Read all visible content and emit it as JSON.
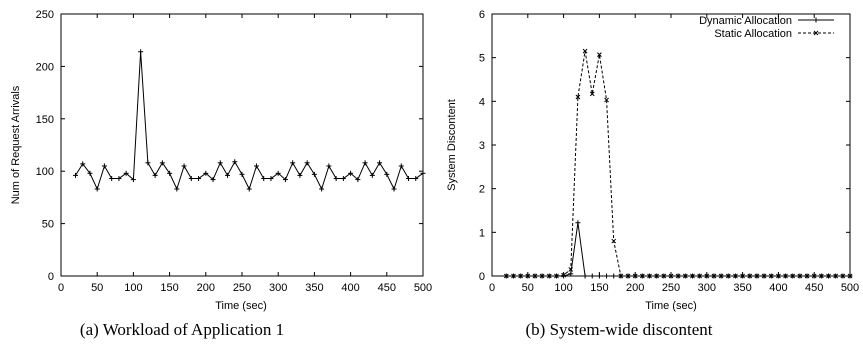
{
  "chart_data": [
    {
      "type": "line",
      "caption": "(a) Workload of Application 1",
      "xlabel": "Time (sec)",
      "ylabel": "Num of Request Arrivals",
      "xlim": [
        0,
        500
      ],
      "ylim": [
        0,
        250
      ],
      "xticks": [
        0,
        50,
        100,
        150,
        200,
        250,
        300,
        350,
        400,
        450,
        500
      ],
      "yticks": [
        0,
        50,
        100,
        150,
        200,
        250
      ],
      "grid": false,
      "series": [
        {
          "x": [
            20,
            30,
            40,
            50,
            60,
            70,
            80,
            90,
            100,
            110,
            120,
            130,
            140,
            150,
            160,
            170,
            180,
            190,
            200,
            210,
            220,
            230,
            240,
            250,
            260,
            270,
            280,
            290,
            300,
            310,
            320,
            330,
            340,
            350,
            360,
            370,
            380,
            390,
            400,
            410,
            420,
            430,
            440,
            450,
            460,
            470,
            480,
            490,
            500
          ],
          "values": [
            96,
            107,
            98,
            83,
            105,
            93,
            93,
            98,
            92,
            214,
            108,
            96,
            108,
            98,
            83,
            105,
            93,
            93,
            98,
            92,
            108,
            96,
            109,
            97,
            83,
            105,
            93,
            93,
            98,
            92,
            108,
            96,
            108,
            97,
            83,
            105,
            93,
            93,
            98,
            92,
            108,
            96,
            108,
            97,
            83,
            105,
            93,
            93,
            98
          ]
        }
      ]
    },
    {
      "type": "line",
      "caption": "(b) System-wide discontent",
      "xlabel": "Time (sec)",
      "ylabel": "System Discontent",
      "xlim": [
        0,
        500
      ],
      "ylim": [
        0,
        6
      ],
      "xticks": [
        0,
        50,
        100,
        150,
        200,
        250,
        300,
        350,
        400,
        450,
        500
      ],
      "yticks": [
        0,
        1,
        2,
        3,
        4,
        5,
        6
      ],
      "grid": false,
      "legend": "top-right",
      "series": [
        {
          "name": "Dynamic Allocation",
          "x": [
            20,
            30,
            40,
            50,
            60,
            70,
            80,
            90,
            100,
            110,
            120,
            130,
            140,
            150,
            160,
            170,
            180,
            190,
            200,
            210,
            220,
            230,
            240,
            250,
            260,
            270,
            280,
            290,
            300,
            310,
            320,
            330,
            340,
            350,
            360,
            370,
            380,
            390,
            400,
            410,
            420,
            430,
            440,
            450,
            460,
            470,
            480,
            490,
            500
          ],
          "values": [
            0,
            0,
            0,
            0,
            0,
            0,
            0,
            0,
            0,
            0.05,
            1.22,
            0,
            0,
            0,
            0,
            0,
            0,
            0,
            0,
            0,
            0,
            0,
            0,
            0,
            0,
            0,
            0,
            0,
            0,
            0,
            0,
            0,
            0,
            0,
            0,
            0,
            0,
            0,
            0,
            0,
            0,
            0,
            0,
            0,
            0,
            0,
            0,
            0,
            0
          ]
        },
        {
          "name": "Static Allocation",
          "x": [
            20,
            30,
            40,
            50,
            60,
            70,
            80,
            90,
            100,
            110,
            120,
            130,
            140,
            150,
            160,
            170,
            180,
            190,
            200,
            210,
            220,
            230,
            240,
            250,
            260,
            270,
            280,
            290,
            300,
            310,
            320,
            330,
            340,
            350,
            360,
            370,
            380,
            390,
            400,
            410,
            420,
            430,
            440,
            450,
            460,
            470,
            480,
            490,
            500
          ],
          "values": [
            0,
            0,
            0,
            0,
            0,
            0,
            0,
            0,
            0.02,
            0.15,
            4.1,
            5.15,
            4.17,
            5.07,
            4.03,
            0.8,
            0,
            0,
            0,
            0,
            0,
            0,
            0,
            0,
            0,
            0,
            0,
            0,
            0,
            0,
            0,
            0,
            0,
            0,
            0,
            0,
            0,
            0,
            0,
            0,
            0,
            0,
            0,
            0,
            0,
            0,
            0,
            0,
            0
          ]
        }
      ]
    }
  ]
}
